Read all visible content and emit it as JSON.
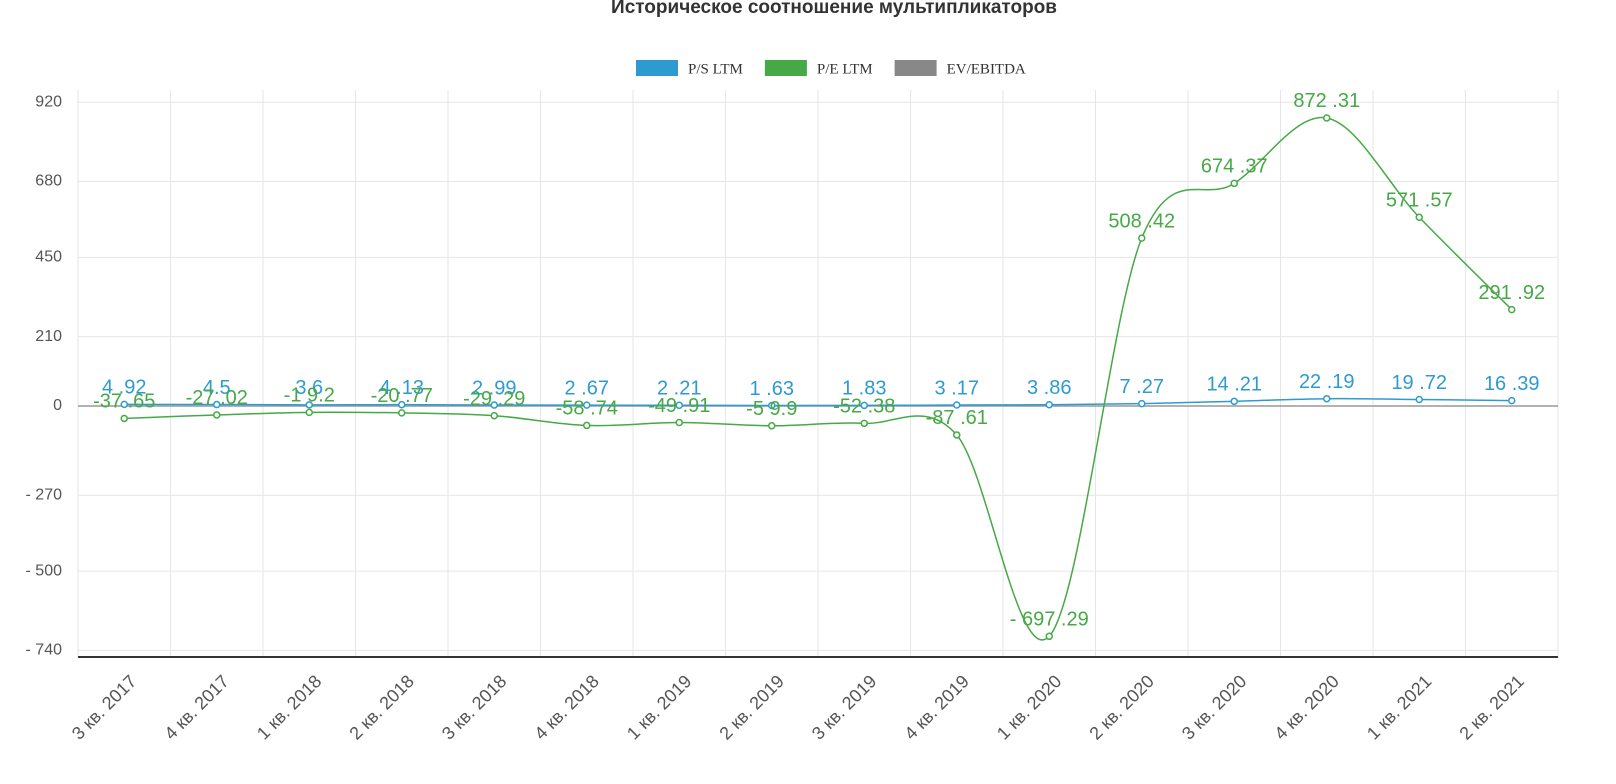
{
  "chart_data": {
    "type": "line",
    "title": "Историческое соотношение мультипликаторов",
    "categories": [
      "3 кв. 2017",
      "4 кв. 2017",
      "1 кв. 2018",
      "2 кв. 2018",
      "3 кв. 2018",
      "4 кв. 2018",
      "1 кв. 2019",
      "2 кв. 2019",
      "3 кв. 2019",
      "4 кв. 2019",
      "1 кв. 2020",
      "2 кв. 2020",
      "3 кв. 2020",
      "4 кв. 2020",
      "1 кв. 2021",
      "2 кв. 2021"
    ],
    "series": [
      {
        "name": "P/S LTM",
        "color": "#2e9bd0",
        "values": [
          4.92,
          4.5,
          3.6,
          4.13,
          2.99,
          2.67,
          2.21,
          1.63,
          1.83,
          3.17,
          3.86,
          7.27,
          14.21,
          22.19,
          19.72,
          16.39
        ],
        "value_labels": [
          "4 .92",
          "4.5",
          "3.6",
          "4 .13",
          "2 .99",
          "2 .67",
          "2 .21",
          "1 .63",
          "1 .83",
          "3 .17",
          "3 .86",
          "7 .27",
          "14 .21",
          "22 .19",
          "19 .72",
          "16 .39"
        ]
      },
      {
        "name": "P/E LTM",
        "color": "#46a946",
        "values": [
          -37.65,
          -27.02,
          -19.2,
          -20.77,
          -29.29,
          -58.74,
          -49.91,
          -59.9,
          -52.38,
          -87.61,
          -697.29,
          508.42,
          674.37,
          872.31,
          571.57,
          291.92
        ],
        "value_labels": [
          "-37 .65",
          "-27 .02",
          "-1 9.2",
          "-20 .77",
          "-29 .29",
          "-58 .74",
          "-49 .91",
          "-5 9.9",
          "-52 .38",
          "-87 .61",
          "- 697 .29",
          "508 .42",
          "674 .37",
          "872 .31",
          "571 .57",
          "291 .92"
        ]
      },
      {
        "name": "EV/EBITDA",
        "color": "#888888",
        "values": [
          null,
          null,
          null,
          null,
          null,
          null,
          null,
          null,
          null,
          null,
          null,
          null,
          null,
          null,
          null,
          null
        ]
      }
    ],
    "ylim": [
      -760,
      957
    ],
    "yticks": [
      920,
      680,
      450,
      210,
      0,
      {
        "value": -270,
        "label": "- 270"
      },
      {
        "value": -500,
        "label": "- 500"
      },
      {
        "value": -740,
        "label": "- 740"
      }
    ],
    "grid": true
  }
}
